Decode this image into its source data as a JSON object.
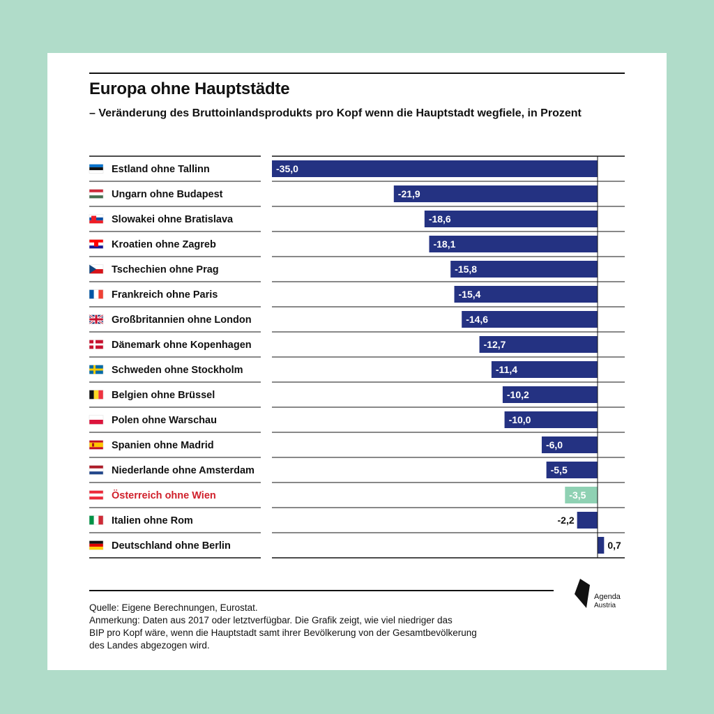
{
  "header": {
    "title": "Europa ohne Hauptstädte",
    "subtitle": "– Veränderung des Bruttoinlandsprodukts pro Kopf wenn die Hauptstadt wegfiele, in Prozent"
  },
  "colors": {
    "page_background": "#b0dcc9",
    "card_background": "#ffffff",
    "bar": "#243282",
    "bar_highlight": "#8fd1b3",
    "label_highlight": "#d0202b"
  },
  "chart_data": {
    "type": "bar",
    "orientation": "horizontal",
    "title": "Europa ohne Hauptstädte",
    "subtitle": "– Veränderung des Bruttoinlandsprodukts pro Kopf wenn die Hauptstadt wegfiele, in Prozent",
    "xlim": [
      -35,
      0.7
    ],
    "grid": false,
    "categories": [
      "Estland ohne Tallinn",
      "Ungarn ohne Budapest",
      "Slowakei ohne Bratislava",
      "Kroatien ohne Zagreb",
      "Tschechien ohne Prag",
      "Frankreich ohne Paris",
      "Großbritannien ohne London",
      "Dänemark ohne Kopenhagen",
      "Schweden ohne Stockholm",
      "Belgien ohne Brüssel",
      "Polen ohne Warschau",
      "Spanien ohne Madrid",
      "Niederlande ohne Amsterdam",
      "Österreich ohne Wien",
      "Italien ohne Rom",
      "Deutschland ohne Berlin"
    ],
    "values": [
      -35.0,
      -21.9,
      -18.6,
      -18.1,
      -15.8,
      -15.4,
      -14.6,
      -12.7,
      -11.4,
      -10.2,
      -10.0,
      -6.0,
      -5.5,
      -3.5,
      -2.2,
      0.7
    ],
    "value_labels": [
      "-35,0",
      "-21,9",
      "-18,6",
      "-18,1",
      "-15,8",
      "-15,4",
      "-14,6",
      "-12,7",
      "-11,4",
      "-10,2",
      "-10,0",
      "-6,0",
      "-5,5",
      "-3,5",
      "-2,2",
      "0,7"
    ],
    "highlight_category": "Österreich ohne Wien",
    "flags": [
      "EE",
      "HU",
      "SK",
      "HR",
      "CZ",
      "FR",
      "GB",
      "DK",
      "SE",
      "BE",
      "PL",
      "ES",
      "NL",
      "AT",
      "IT",
      "DE"
    ]
  },
  "footer": {
    "source": "Quelle: Eigene Berechnungen, Eurostat.",
    "note_lines": [
      "Anmerkung: Daten aus 2017 oder letztverfügbar. Die Grafik zeigt, wie viel niedriger das",
      "BIP pro Kopf wäre, wenn die Hauptstadt samt ihrer Bevölkerung von der Gesamtbevölkerung",
      "des Landes abgezogen wird."
    ]
  },
  "logo": {
    "name": "Agenda",
    "sub": "Austria",
    "icon": "agenda-austria-logo-icon"
  }
}
